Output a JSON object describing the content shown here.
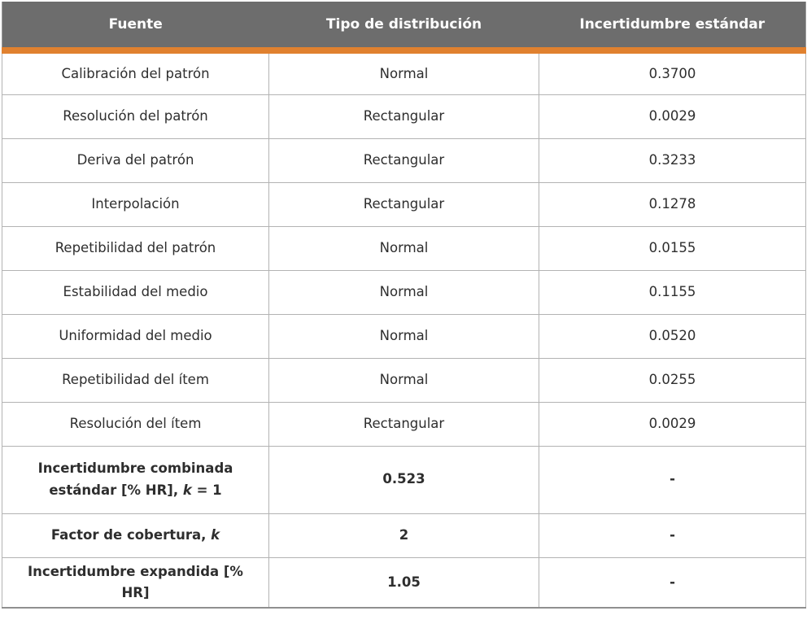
{
  "table": {
    "columns": [
      "Fuente",
      "Tipo de distribución",
      "Incertidumbre estándar"
    ],
    "rows": [
      {
        "fuente": [
          "Calibración del patrón"
        ],
        "tipo": "Normal",
        "incertidumbre": "0.3700",
        "bold": false,
        "tall": false
      },
      {
        "fuente": [
          "Resolución del patrón"
        ],
        "tipo": "Rectangular",
        "incertidumbre": "0.0029",
        "bold": false,
        "tall": false
      },
      {
        "fuente": [
          "Deriva del patrón"
        ],
        "tipo": "Rectangular",
        "incertidumbre": "0.3233",
        "bold": false,
        "tall": false
      },
      {
        "fuente": [
          "Interpolación"
        ],
        "tipo": "Rectangular",
        "incertidumbre": "0.1278",
        "bold": false,
        "tall": false
      },
      {
        "fuente": [
          "Repetibilidad del patrón"
        ],
        "tipo": "Normal",
        "incertidumbre": "0.0155",
        "bold": false,
        "tall": false
      },
      {
        "fuente": [
          "Estabilidad del medio"
        ],
        "tipo": "Normal",
        "incertidumbre": "0.1155",
        "bold": false,
        "tall": false
      },
      {
        "fuente": [
          "Uniformidad del medio"
        ],
        "tipo": "Normal",
        "incertidumbre": "0.0520",
        "bold": false,
        "tall": false
      },
      {
        "fuente": [
          "Repetibilidad del ítem"
        ],
        "tipo": "Normal",
        "incertidumbre": "0.0255",
        "bold": false,
        "tall": false
      },
      {
        "fuente": [
          "Resolución del ítem"
        ],
        "tipo": "Rectangular",
        "incertidumbre": "0.0029",
        "bold": false,
        "tall": false
      },
      {
        "fuente": [
          "Incertidumbre combinada estándar [% HR], ",
          {
            "i": "k"
          },
          " = 1"
        ],
        "tipo": "0.523",
        "incertidumbre": "-",
        "bold": true,
        "tall": true
      },
      {
        "fuente": [
          "Factor de cobertura, ",
          {
            "i": "k"
          }
        ],
        "tipo": "2",
        "incertidumbre": "-",
        "bold": true,
        "tall": false
      },
      {
        "fuente": [
          "Incertidumbre expandida [% HR]"
        ],
        "tipo": "1.05",
        "incertidumbre": "-",
        "bold": true,
        "tall": false
      }
    ],
    "colors": {
      "header-bg": "#6d6d6d",
      "header-text": "#ffffff",
      "accent": "#e0812f",
      "grid-line": "#b3b3b3",
      "outer-border": "#9a9a9a",
      "body-text": "#2e2e2e"
    }
  },
  "chart_data": {
    "type": "table",
    "title": "",
    "columns": [
      "Fuente",
      "Tipo de distribución",
      "Incertidumbre estándar"
    ],
    "rows": [
      [
        "Calibración del patrón",
        "Normal",
        "0.3700"
      ],
      [
        "Resolución del patrón",
        "Rectangular",
        "0.0029"
      ],
      [
        "Deriva del patrón",
        "Rectangular",
        "0.3233"
      ],
      [
        "Interpolación",
        "Rectangular",
        "0.1278"
      ],
      [
        "Repetibilidad del patrón",
        "Normal",
        "0.0155"
      ],
      [
        "Estabilidad del medio",
        "Normal",
        "0.1155"
      ],
      [
        "Uniformidad del medio",
        "Normal",
        "0.0520"
      ],
      [
        "Repetibilidad del ítem",
        "Normal",
        "0.0255"
      ],
      [
        "Resolución del ítem",
        "Rectangular",
        "0.0029"
      ],
      [
        "Incertidumbre combinada estándar [% HR], k = 1",
        "0.523",
        "-"
      ],
      [
        "Factor de cobertura, k",
        "2",
        "-"
      ],
      [
        "Incertidumbre expandida [% HR]",
        "1.05",
        "-"
      ]
    ]
  }
}
